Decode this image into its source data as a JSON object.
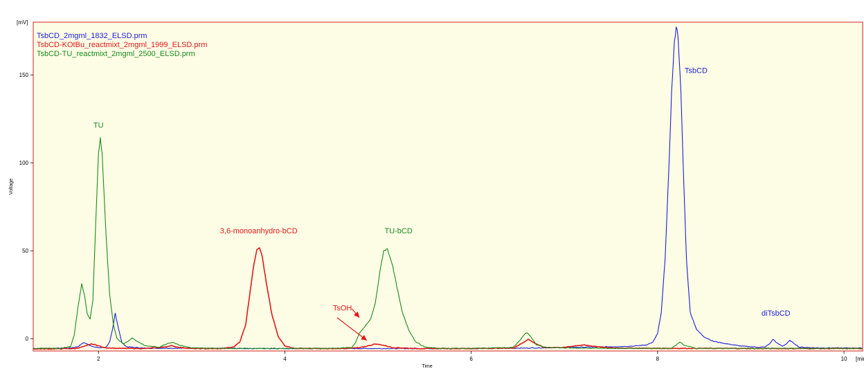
{
  "chart_data": {
    "type": "line",
    "xlabel": "Time",
    "ylabel": "Voltage",
    "x_unit_label": "[min]",
    "y_unit_label": "[mV]",
    "xlim": [
      1.3,
      10.2
    ],
    "ylim": [
      -7,
      180
    ],
    "x_ticks": [
      {
        "value": 2,
        "label": "2"
      },
      {
        "value": 4,
        "label": "4"
      },
      {
        "value": 6,
        "label": "6"
      },
      {
        "value": 8,
        "label": "8"
      },
      {
        "value": 10,
        "label": "10"
      }
    ],
    "y_ticks": [
      {
        "value": 0,
        "label": "0"
      },
      {
        "value": 50,
        "label": "50"
      },
      {
        "value": 100,
        "label": "100"
      },
      {
        "value": 150,
        "label": "150"
      }
    ],
    "grid": false,
    "plot_background": "#fdfde6",
    "plot_border_color": "#d42020",
    "legend_position": "top-left",
    "series": [
      {
        "name": "TsbCD_2mgml_1832_ELSD.prm",
        "color": "#1c1cd8",
        "points": [
          [
            1.3,
            -5.5
          ],
          [
            1.5,
            -5.5
          ],
          [
            1.7,
            -5.3
          ],
          [
            1.78,
            -4.5
          ],
          [
            1.84,
            -2.2
          ],
          [
            1.9,
            -3.6
          ],
          [
            1.96,
            -4.8
          ],
          [
            2.02,
            -5.2
          ],
          [
            2.08,
            -4.8
          ],
          [
            2.12,
            -2.0
          ],
          [
            2.15,
            5.0
          ],
          [
            2.18,
            14.5
          ],
          [
            2.21,
            7.0
          ],
          [
            2.25,
            -2.0
          ],
          [
            2.3,
            -4.6
          ],
          [
            2.5,
            -5.4
          ],
          [
            2.8,
            -5.4
          ],
          [
            3.2,
            -5.5
          ],
          [
            3.6,
            -5.6
          ],
          [
            4.0,
            -5.6
          ],
          [
            4.5,
            -5.6
          ],
          [
            5.0,
            -5.6
          ],
          [
            5.5,
            -5.6
          ],
          [
            6.0,
            -5.6
          ],
          [
            6.5,
            -5.4
          ],
          [
            7.0,
            -5.0
          ],
          [
            7.5,
            -4.6
          ],
          [
            7.75,
            -4.2
          ],
          [
            7.88,
            -3.5
          ],
          [
            7.95,
            -2.0
          ],
          [
            8.0,
            3.0
          ],
          [
            8.04,
            15.0
          ],
          [
            8.08,
            45.0
          ],
          [
            8.12,
            95.0
          ],
          [
            8.15,
            140.0
          ],
          [
            8.18,
            168.0
          ],
          [
            8.2,
            178.0
          ],
          [
            8.22,
            172.0
          ],
          [
            8.25,
            140.0
          ],
          [
            8.28,
            90.0
          ],
          [
            8.31,
            45.0
          ],
          [
            8.35,
            15.0
          ],
          [
            8.42,
            5.0
          ],
          [
            8.5,
            1.0
          ],
          [
            8.6,
            -1.5
          ],
          [
            8.75,
            -3.0
          ],
          [
            8.9,
            -4.2
          ],
          [
            9.05,
            -4.8
          ],
          [
            9.15,
            -4.8
          ],
          [
            9.2,
            -3.0
          ],
          [
            9.24,
            -0.3
          ],
          [
            9.28,
            -2.5
          ],
          [
            9.34,
            -4.2
          ],
          [
            9.38,
            -3.0
          ],
          [
            9.42,
            -1.0
          ],
          [
            9.46,
            -2.5
          ],
          [
            9.52,
            -4.8
          ],
          [
            9.7,
            -5.2
          ],
          [
            10.0,
            -5.3
          ],
          [
            10.2,
            -5.3
          ]
        ]
      },
      {
        "name": "TsbCD-KOtBu_reactmixt_2mgml_1999_ELSD.prm",
        "color": "#e01818",
        "points": [
          [
            1.3,
            -5.8
          ],
          [
            1.5,
            -5.8
          ],
          [
            1.75,
            -5.6
          ],
          [
            1.85,
            -4.4
          ],
          [
            1.92,
            -3.0
          ],
          [
            1.98,
            -3.6
          ],
          [
            2.05,
            -5.0
          ],
          [
            2.2,
            -5.5
          ],
          [
            2.5,
            -5.6
          ],
          [
            2.7,
            -4.8
          ],
          [
            2.78,
            -4.0
          ],
          [
            2.85,
            -4.8
          ],
          [
            3.0,
            -5.6
          ],
          [
            3.3,
            -5.7
          ],
          [
            3.45,
            -4.8
          ],
          [
            3.52,
            -1.5
          ],
          [
            3.58,
            8.0
          ],
          [
            3.63,
            28.0
          ],
          [
            3.67,
            43.0
          ],
          [
            3.7,
            51.0
          ],
          [
            3.73,
            52.0
          ],
          [
            3.76,
            46.0
          ],
          [
            3.8,
            32.0
          ],
          [
            3.86,
            14.0
          ],
          [
            3.93,
            1.0
          ],
          [
            4.0,
            -4.0
          ],
          [
            4.1,
            -5.5
          ],
          [
            4.5,
            -5.7
          ],
          [
            4.8,
            -5.2
          ],
          [
            4.9,
            -4.0
          ],
          [
            4.97,
            -3.0
          ],
          [
            5.05,
            -3.6
          ],
          [
            5.15,
            -5.0
          ],
          [
            5.4,
            -5.6
          ],
          [
            6.0,
            -5.6
          ],
          [
            6.45,
            -5.3
          ],
          [
            6.55,
            -2.5
          ],
          [
            6.61,
            -0.3
          ],
          [
            6.68,
            -2.5
          ],
          [
            6.78,
            -5.0
          ],
          [
            7.0,
            -5.0
          ],
          [
            7.12,
            -4.0
          ],
          [
            7.2,
            -3.6
          ],
          [
            7.3,
            -4.2
          ],
          [
            7.5,
            -5.3
          ],
          [
            8.0,
            -5.5
          ],
          [
            8.5,
            -5.5
          ],
          [
            9.0,
            -5.6
          ],
          [
            9.5,
            -5.6
          ],
          [
            10.2,
            -5.6
          ]
        ]
      },
      {
        "name": "TsbCD-TU_reactmixt_2mgml_2500_ELSD.prm",
        "color": "#1b8a1b",
        "points": [
          [
            1.3,
            -5.5
          ],
          [
            1.6,
            -5.5
          ],
          [
            1.7,
            -4.5
          ],
          [
            1.74,
            2.0
          ],
          [
            1.78,
            18.0
          ],
          [
            1.82,
            31.0
          ],
          [
            1.85,
            25.0
          ],
          [
            1.88,
            14.0
          ],
          [
            1.91,
            11.0
          ],
          [
            1.94,
            22.0
          ],
          [
            1.97,
            65.0
          ],
          [
            2.0,
            105.0
          ],
          [
            2.02,
            114.0
          ],
          [
            2.04,
            105.0
          ],
          [
            2.08,
            60.0
          ],
          [
            2.12,
            25.0
          ],
          [
            2.16,
            8.0
          ],
          [
            2.2,
            0.0
          ],
          [
            2.27,
            -3.0
          ],
          [
            2.33,
            -1.0
          ],
          [
            2.36,
            0.5
          ],
          [
            2.4,
            -1.0
          ],
          [
            2.5,
            -4.0
          ],
          [
            2.65,
            -4.8
          ],
          [
            2.75,
            -2.5
          ],
          [
            2.8,
            -2.0
          ],
          [
            2.86,
            -3.5
          ],
          [
            3.0,
            -5.3
          ],
          [
            3.5,
            -5.5
          ],
          [
            4.0,
            -5.5
          ],
          [
            4.5,
            -5.5
          ],
          [
            4.72,
            -5.0
          ],
          [
            4.76,
            -2.0
          ],
          [
            4.8,
            3.0
          ],
          [
            4.86,
            7.0
          ],
          [
            4.92,
            11.0
          ],
          [
            4.97,
            20.0
          ],
          [
            5.02,
            38.0
          ],
          [
            5.06,
            50.0
          ],
          [
            5.1,
            51.0
          ],
          [
            5.15,
            43.0
          ],
          [
            5.2,
            30.0
          ],
          [
            5.26,
            15.0
          ],
          [
            5.33,
            5.0
          ],
          [
            5.4,
            -1.5
          ],
          [
            5.5,
            -4.8
          ],
          [
            5.65,
            -5.5
          ],
          [
            6.0,
            -5.5
          ],
          [
            6.45,
            -5.0
          ],
          [
            6.53,
            -0.5
          ],
          [
            6.57,
            2.5
          ],
          [
            6.6,
            3.5
          ],
          [
            6.64,
            1.0
          ],
          [
            6.7,
            -3.5
          ],
          [
            6.8,
            -5.0
          ],
          [
            7.2,
            -5.4
          ],
          [
            7.6,
            -5.5
          ],
          [
            8.15,
            -5.5
          ],
          [
            8.2,
            -3.5
          ],
          [
            8.24,
            -1.8
          ],
          [
            8.28,
            -3.5
          ],
          [
            8.4,
            -5.5
          ],
          [
            9.0,
            -5.5
          ],
          [
            10.2,
            -5.5
          ]
        ]
      }
    ],
    "annotations": [
      {
        "text": "TU",
        "color": "#1b8a1b",
        "x": 2.0,
        "y": 120,
        "anchor": "middle"
      },
      {
        "text": "3,6-monoanhydro-bCD",
        "color": "#e01818",
        "x": 3.72,
        "y": 60,
        "anchor": "middle"
      },
      {
        "text": "TU-bCD",
        "color": "#1b8a1b",
        "x": 5.22,
        "y": 60,
        "anchor": "middle"
      },
      {
        "text": "TsOH",
        "color": "#e01818",
        "x": 4.72,
        "y": 16,
        "anchor": "end"
      },
      {
        "text": "TsbCD",
        "color": "#1c1cd8",
        "x": 8.29,
        "y": 151,
        "anchor": "start"
      },
      {
        "text": "diTsbCD",
        "color": "#1c1cd8",
        "x": 9.27,
        "y": 13,
        "anchor": "middle"
      }
    ],
    "arrows": [
      {
        "color": "#e01818",
        "from": [
          4.72,
          17
        ],
        "to": [
          4.8,
          12
        ]
      },
      {
        "color": "#e01818",
        "from": [
          4.56,
          12
        ],
        "to": [
          4.88,
          -1
        ]
      }
    ]
  }
}
